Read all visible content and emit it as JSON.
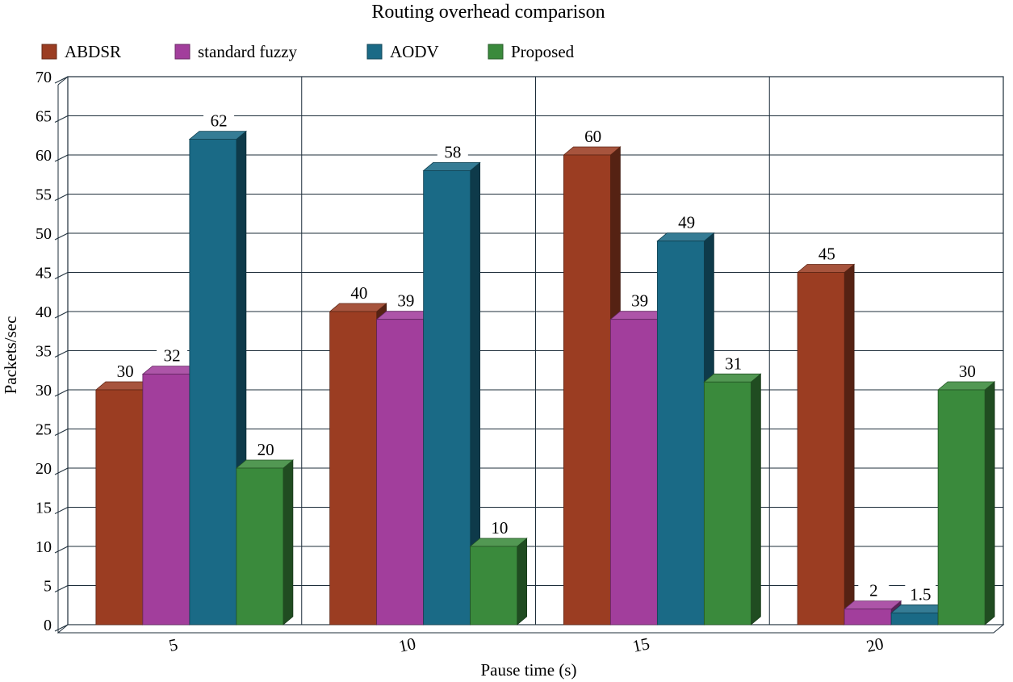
{
  "chart_data": {
    "type": "bar",
    "title": "Routing overhead comparison",
    "xlabel": "Pause time (s)",
    "ylabel": "Packets/sec",
    "categories": [
      "5",
      "10",
      "15",
      "20"
    ],
    "ylim": [
      0,
      70
    ],
    "yticks": [
      0,
      5,
      10,
      15,
      20,
      25,
      30,
      35,
      40,
      45,
      50,
      55,
      60,
      65,
      70
    ],
    "grid": true,
    "legend_position": "top",
    "series": [
      {
        "name": "ABDSR",
        "values": [
          30,
          40,
          60,
          45
        ],
        "labels": [
          "30",
          "40",
          "60",
          "45"
        ],
        "color": "#9b3d22"
      },
      {
        "name": "standard fuzzy",
        "values": [
          32,
          39,
          39,
          2
        ],
        "labels": [
          "32",
          "39",
          "39",
          "2"
        ],
        "color": "#a23e9c"
      },
      {
        "name": "AODV",
        "values": [
          62,
          58,
          49,
          1.5
        ],
        "labels": [
          "62",
          "58",
          "49",
          "1.5"
        ],
        "color": "#1a6a86"
      },
      {
        "name": "Proposed",
        "values": [
          20,
          10,
          31,
          30
        ],
        "labels": [
          "20",
          "10",
          "31",
          "30"
        ],
        "color": "#3a8a3c"
      }
    ]
  }
}
